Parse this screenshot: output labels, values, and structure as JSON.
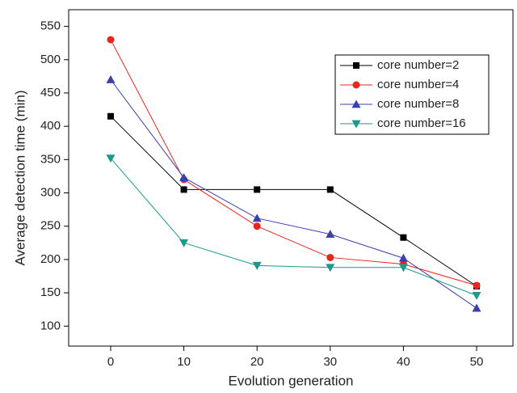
{
  "chart_data": {
    "type": "line",
    "x_label": "Evolution generation",
    "y_label": "Average detection time (min)",
    "categories": [
      "0",
      "10",
      "20",
      "30",
      "40",
      "50"
    ],
    "series": [
      {
        "name": "core number=2",
        "color": "#000000",
        "values": [
          415,
          305,
          305,
          305,
          233,
          160
        ]
      },
      {
        "name": "core number=4",
        "color": "#e8251e",
        "values": [
          530,
          320,
          250,
          203,
          193,
          161
        ]
      },
      {
        "name": "core number=8",
        "color": "#3b3fb0",
        "values": [
          470,
          323,
          262,
          238,
          202,
          127
        ]
      },
      {
        "name": "core number=16",
        "color": "#1a9a8a",
        "values": [
          352,
          225,
          191,
          188,
          188,
          146
        ]
      }
    ],
    "ylim": [
      70,
      575
    ],
    "yticks": [
      100,
      150,
      200,
      250,
      300,
      350,
      400,
      450,
      500,
      550
    ],
    "legend": "upper right"
  }
}
